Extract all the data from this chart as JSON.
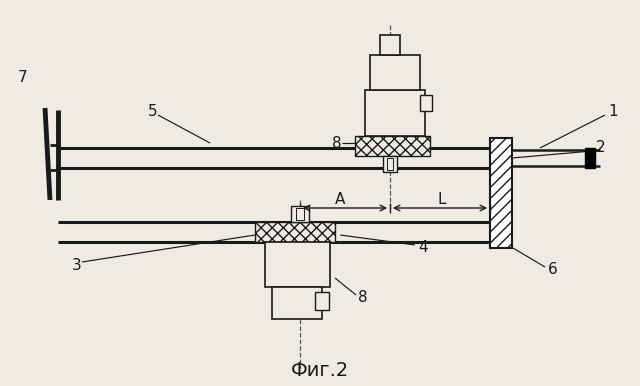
{
  "title": "Фиг.2",
  "background_color": "#eeebe4",
  "line_color": "#1a1a1a",
  "label_fs": 11,
  "title_fs": 14
}
